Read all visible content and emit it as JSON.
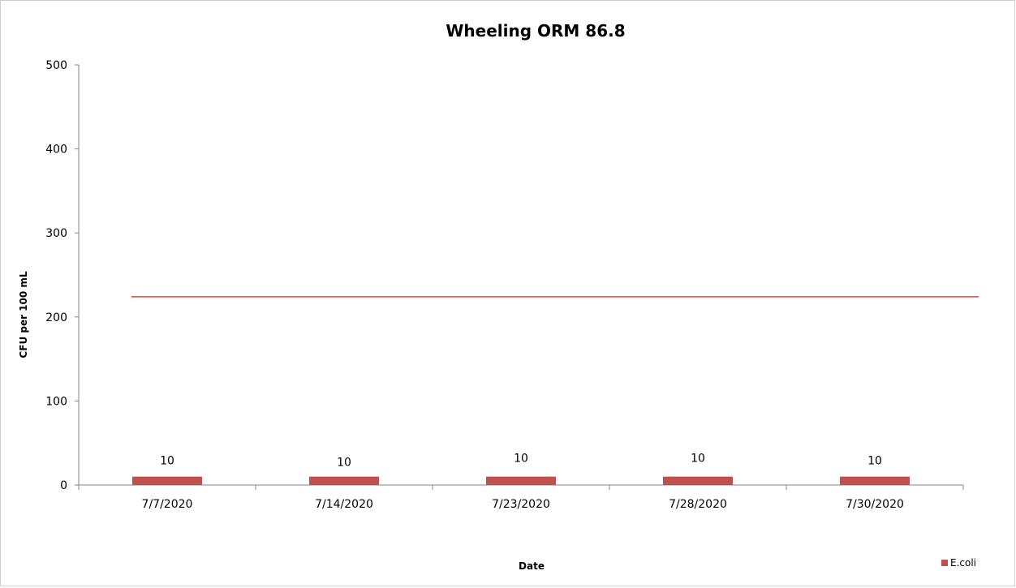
{
  "chart_data": {
    "type": "bar",
    "title": "Wheeling ORM 86.8",
    "xlabel": "Date",
    "ylabel": "CFU per 100 mL",
    "categories": [
      "7/7/2020",
      "7/14/2020",
      "7/23/2020",
      "7/28/2020",
      "7/30/2020"
    ],
    "series": [
      {
        "name": "E.coli",
        "values": [
          10,
          10,
          10,
          10,
          10
        ],
        "color": "#c0504d"
      }
    ],
    "data_labels": [
      "10",
      "10",
      "10",
      "10",
      "10"
    ],
    "reference_line": {
      "value": 224,
      "color": "#e8413a"
    },
    "ylim": [
      0,
      500
    ],
    "yticks": [
      0,
      100,
      200,
      300,
      400,
      500
    ],
    "grid": false,
    "legend": "bottom-right"
  }
}
